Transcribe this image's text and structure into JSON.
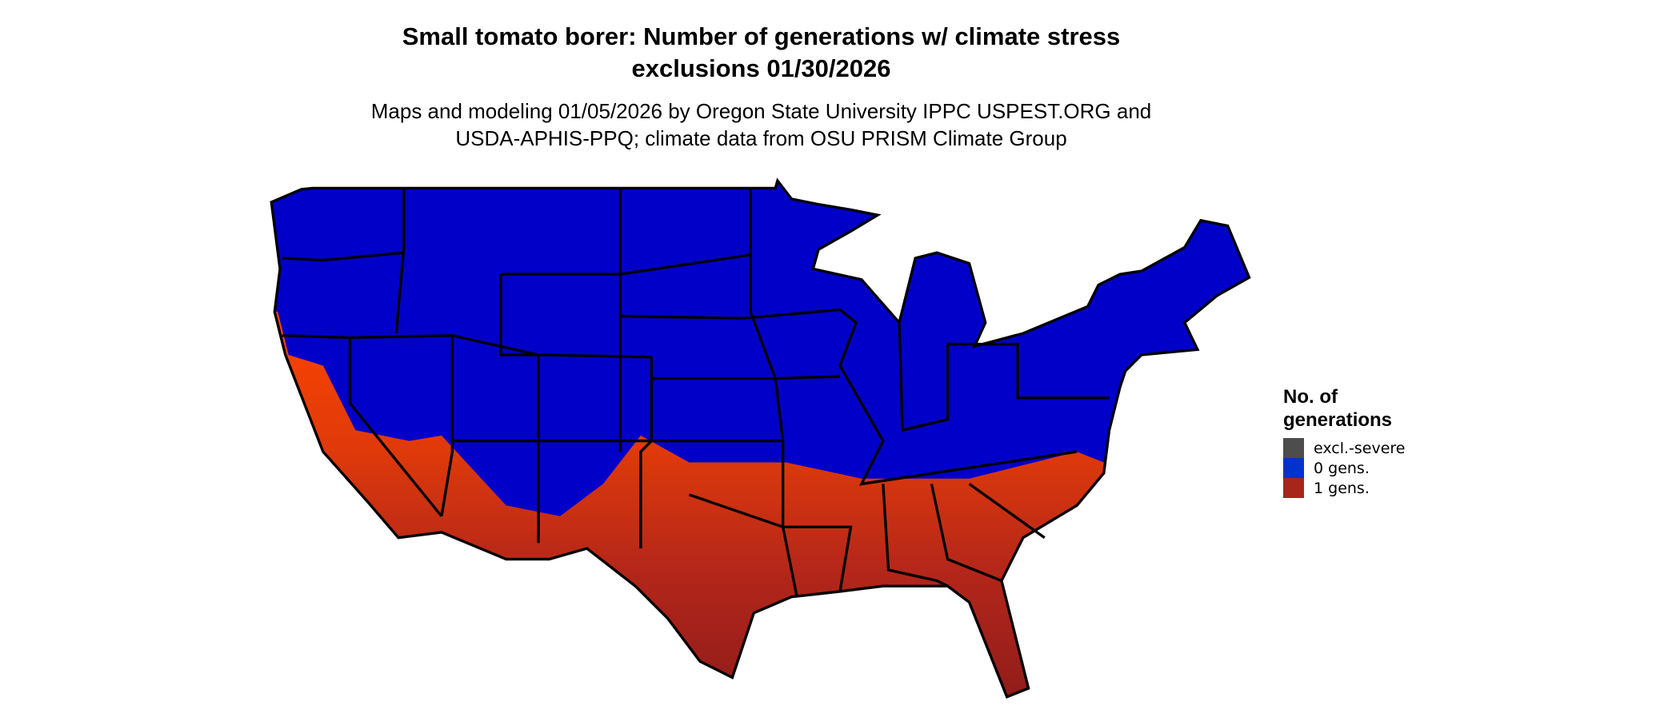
{
  "title_line1": "Small tomato borer: Number of generations w/ climate stress",
  "title_line2": "exclusions 01/30/2026",
  "subtitle_line1": "Maps and modeling 01/05/2026 by Oregon State University IPPC USPEST.ORG and",
  "subtitle_line2": "USDA-APHIS-PPQ; climate data from OSU PRISM Climate Group",
  "legend": {
    "title_line1": "No. of",
    "title_line2": "generations",
    "items": [
      {
        "label": "excl.-severe",
        "color": "#4d4d4d"
      },
      {
        "label": "0 gens.",
        "color": "#0033cc"
      },
      {
        "label": "1 gens.",
        "color": "#a8251a"
      }
    ]
  },
  "map_colors": {
    "zero_generations_region": "#0000c8",
    "one_generation_light": "#ff4400",
    "one_generation_dark": "#8b1a1a",
    "state_borders": "#000000"
  }
}
